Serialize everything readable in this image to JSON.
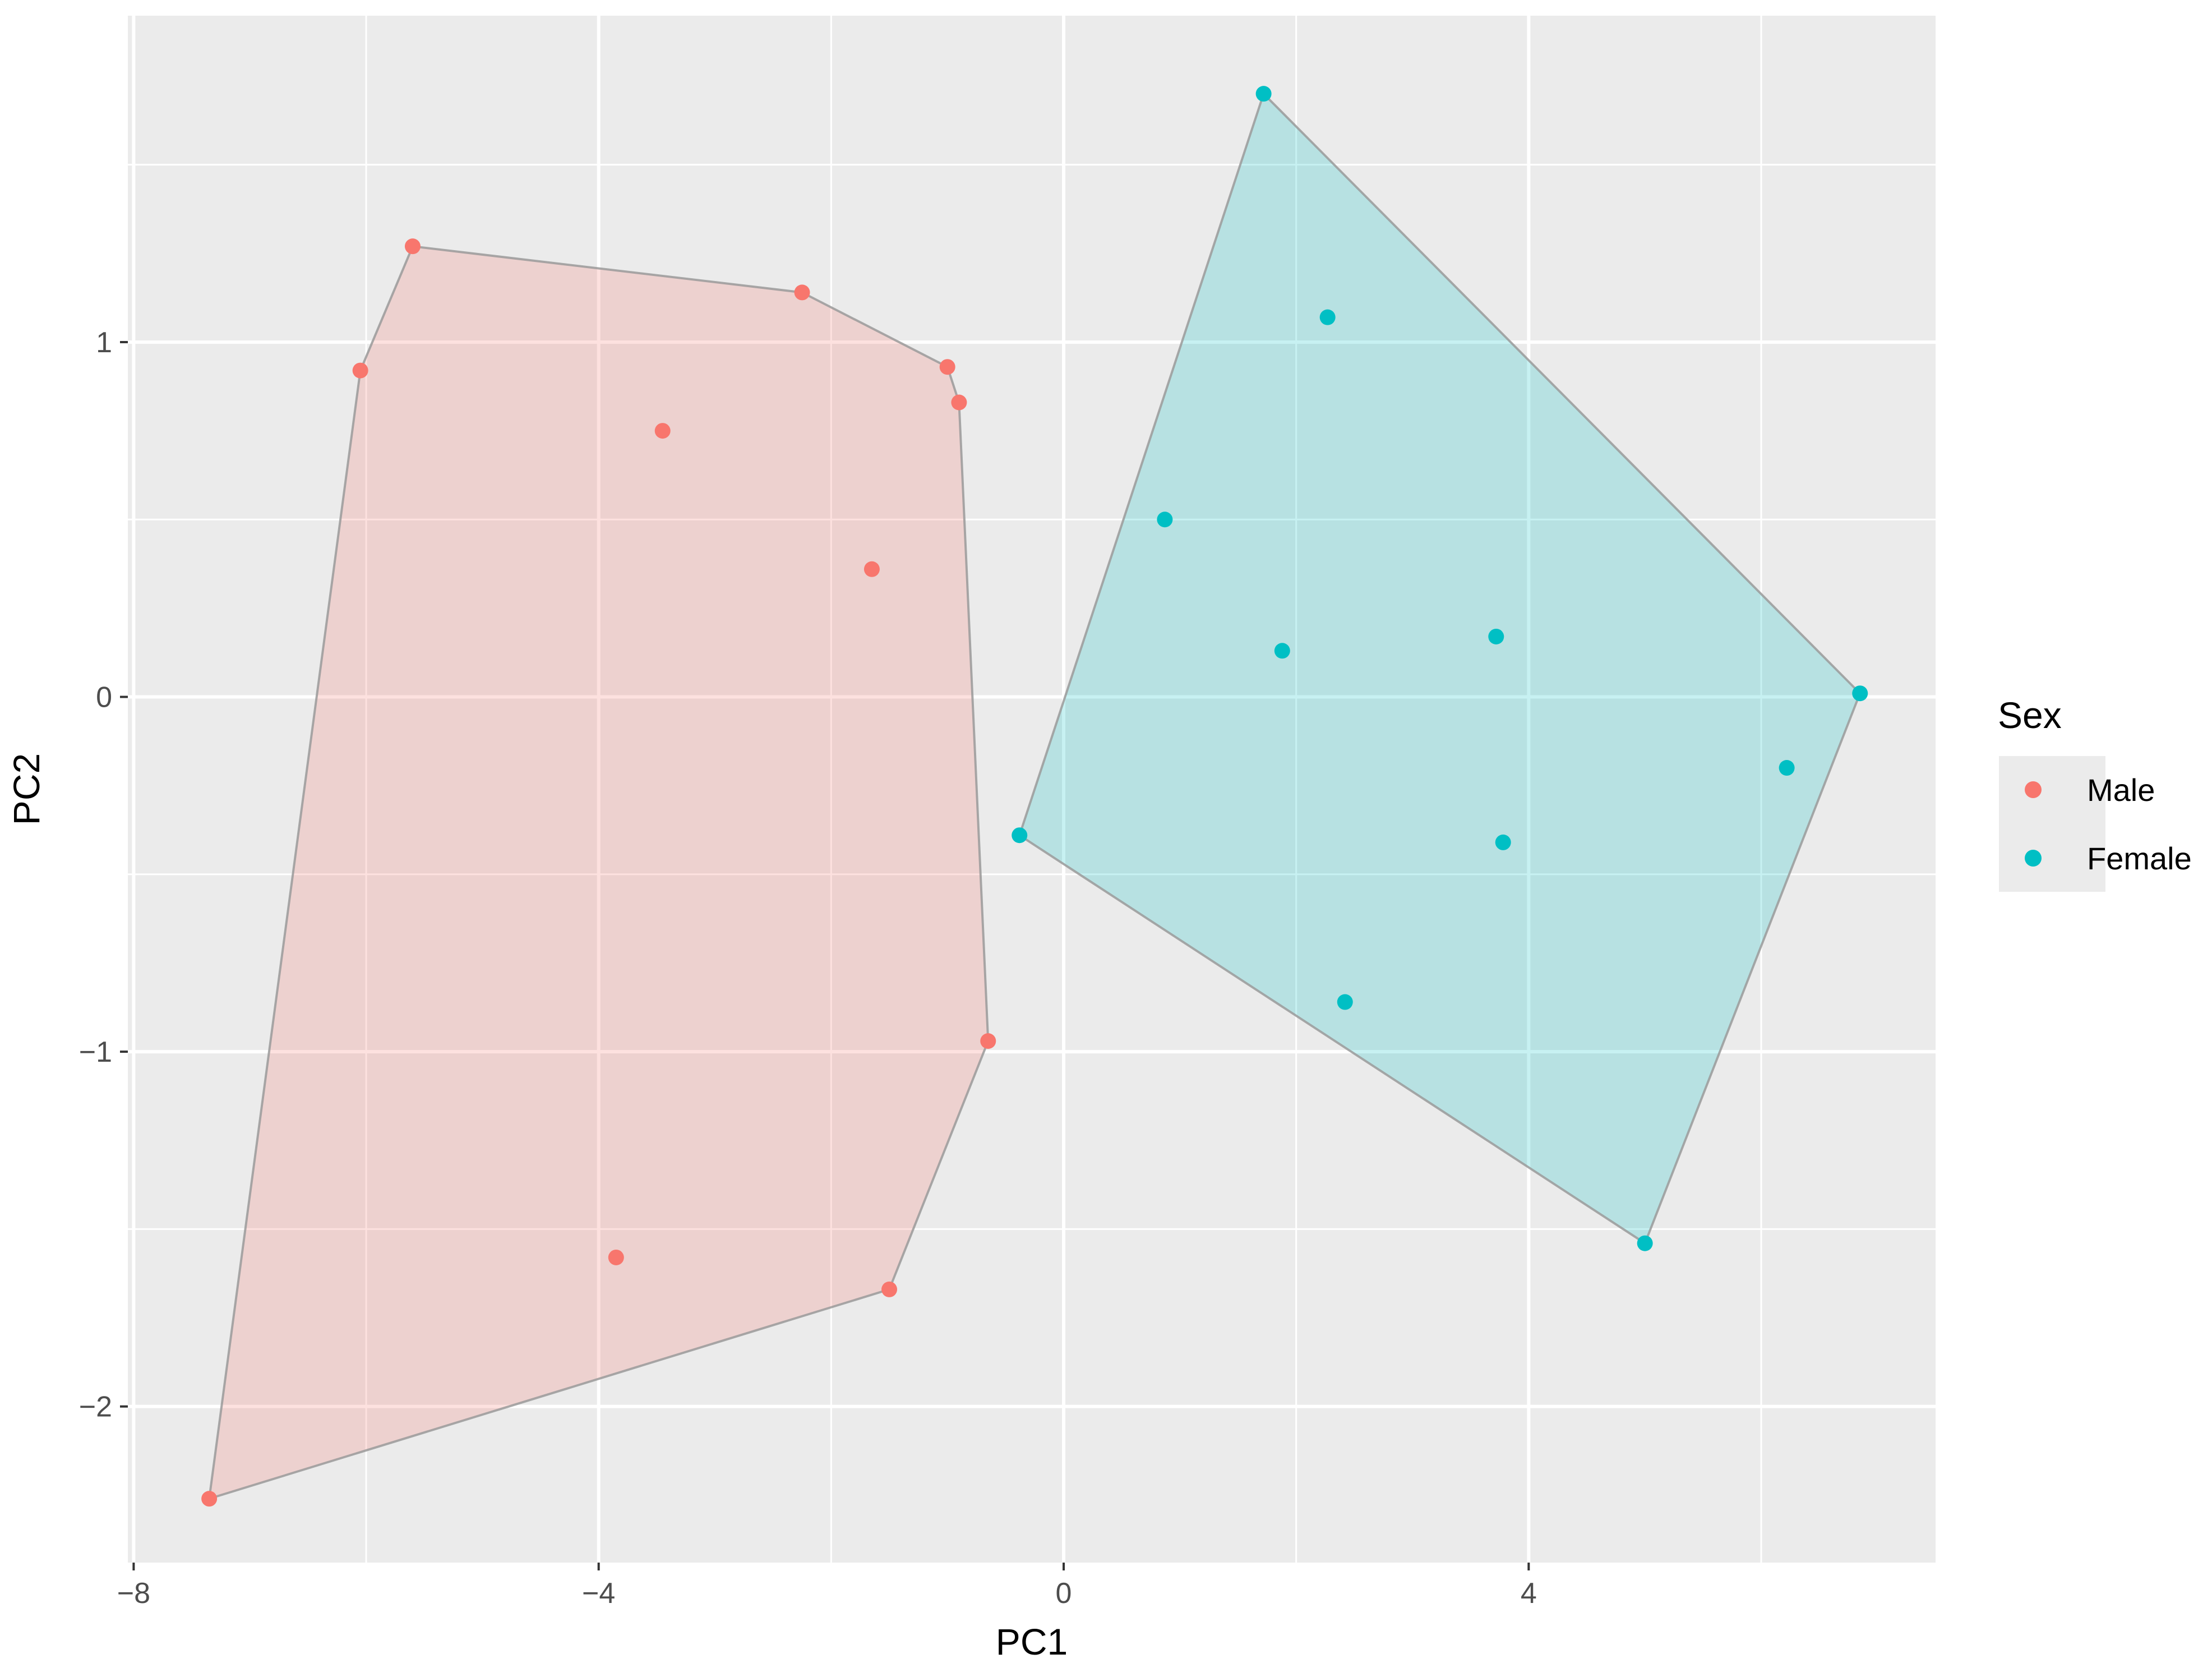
{
  "chart_data": {
    "type": "scatter",
    "title": "",
    "xlabel": "PC1",
    "ylabel": "PC2",
    "xlim": [
      -8.05,
      7.5
    ],
    "ylim": [
      -2.44,
      1.92
    ],
    "x_ticks": [
      -8,
      -4,
      0,
      4
    ],
    "x_tick_labels": [
      "−8",
      "−4",
      "0",
      "4"
    ],
    "x_minor_ticks": [
      -6,
      -2,
      2,
      6
    ],
    "y_ticks": [
      -2,
      -1,
      0,
      1
    ],
    "y_tick_labels": [
      "−2",
      "−1",
      "0",
      "1"
    ],
    "y_minor_ticks": [
      -1.5,
      -0.5,
      0.5,
      1.5
    ],
    "grid": true,
    "legend": {
      "title": "Sex",
      "position": "right"
    },
    "series": [
      {
        "name": "Male",
        "color": "#F8766D",
        "hull_fill": "rgba(248,118,109,0.22)",
        "points": [
          {
            "x": -5.6,
            "y": 1.27
          },
          {
            "x": -6.05,
            "y": 0.92
          },
          {
            "x": -2.25,
            "y": 1.14
          },
          {
            "x": -1.0,
            "y": 0.93
          },
          {
            "x": -0.9,
            "y": 0.83
          },
          {
            "x": -3.45,
            "y": 0.75
          },
          {
            "x": -1.65,
            "y": 0.36
          },
          {
            "x": -0.65,
            "y": -0.97
          },
          {
            "x": -3.85,
            "y": -1.58
          },
          {
            "x": -1.5,
            "y": -1.67
          },
          {
            "x": -7.35,
            "y": -2.26
          }
        ],
        "hull": [
          {
            "x": -7.35,
            "y": -2.26
          },
          {
            "x": -6.05,
            "y": 0.92
          },
          {
            "x": -5.6,
            "y": 1.27
          },
          {
            "x": -2.25,
            "y": 1.14
          },
          {
            "x": -1.0,
            "y": 0.93
          },
          {
            "x": -0.9,
            "y": 0.83
          },
          {
            "x": -0.65,
            "y": -0.97
          },
          {
            "x": -1.5,
            "y": -1.67
          }
        ]
      },
      {
        "name": "Female",
        "color": "#00BFC4",
        "hull_fill": "rgba(0,191,196,0.22)",
        "points": [
          {
            "x": 1.72,
            "y": 1.7
          },
          {
            "x": 2.27,
            "y": 1.07
          },
          {
            "x": 0.87,
            "y": 0.5
          },
          {
            "x": 3.72,
            "y": 0.17
          },
          {
            "x": 1.88,
            "y": 0.13
          },
          {
            "x": 6.85,
            "y": 0.01
          },
          {
            "x": 6.22,
            "y": -0.2
          },
          {
            "x": -0.38,
            "y": -0.39
          },
          {
            "x": 3.78,
            "y": -0.41
          },
          {
            "x": 2.42,
            "y": -0.86
          },
          {
            "x": 5.0,
            "y": -1.54
          }
        ],
        "hull": [
          {
            "x": -0.38,
            "y": -0.39
          },
          {
            "x": 1.72,
            "y": 1.7
          },
          {
            "x": 6.85,
            "y": 0.01
          },
          {
            "x": 5.0,
            "y": -1.54
          }
        ]
      }
    ]
  }
}
